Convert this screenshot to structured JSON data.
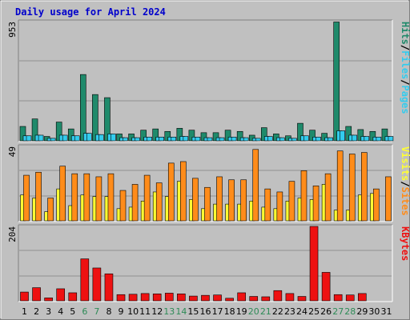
{
  "title": "Daily usage for April 2024",
  "colors": {
    "background": "#C0C0C0",
    "title": "#0000CC",
    "hits": "#1F8A6B",
    "files": "#33CCEE",
    "pages": "#33CCEE",
    "visits": "#FFFF33",
    "sites": "#FF8C1A",
    "kbytes": "#EE1111",
    "weekend_label": "#2E8B57"
  },
  "chart_data": [
    {
      "type": "bar",
      "title": "",
      "y_max_label": "953",
      "right_label_parts": [
        "Pages",
        "Files",
        "Hits"
      ],
      "categories": [
        "1",
        "2",
        "3",
        "4",
        "5",
        "6",
        "7",
        "8",
        "9",
        "10",
        "11",
        "12",
        "13",
        "14",
        "15",
        "16",
        "17",
        "18",
        "19",
        "20",
        "21",
        "22",
        "23",
        "24",
        "25",
        "26",
        "27",
        "28",
        "29",
        "30",
        "31"
      ],
      "weekend_days": [
        "6",
        "7",
        "13",
        "14",
        "20",
        "21",
        "27",
        "28"
      ],
      "ylim": [
        0,
        953
      ],
      "series": [
        {
          "name": "Hits",
          "values": [
            115,
            175,
            35,
            150,
            95,
            530,
            370,
            345,
            55,
            55,
            85,
            95,
            75,
            100,
            85,
            65,
            65,
            85,
            75,
            45,
            105,
            55,
            40,
            140,
            85,
            60,
            950,
            115,
            90,
            75,
            95
          ]
        },
        {
          "name": "Files",
          "values": [
            40,
            45,
            20,
            45,
            40,
            60,
            50,
            55,
            25,
            25,
            30,
            30,
            30,
            35,
            30,
            25,
            25,
            30,
            25,
            20,
            35,
            25,
            20,
            40,
            30,
            25,
            80,
            45,
            35,
            30,
            35
          ]
        },
        {
          "name": "Pages",
          "values": [
            40,
            45,
            20,
            45,
            40,
            60,
            50,
            55,
            25,
            25,
            30,
            30,
            30,
            35,
            30,
            25,
            25,
            30,
            25,
            20,
            35,
            25,
            20,
            40,
            30,
            25,
            80,
            45,
            35,
            30,
            35
          ]
        }
      ]
    },
    {
      "type": "bar",
      "title": "",
      "y_max_label": "49",
      "right_label_parts": [
        "Sites",
        "Visits"
      ],
      "categories": [
        "1",
        "2",
        "3",
        "4",
        "5",
        "6",
        "7",
        "8",
        "9",
        "10",
        "11",
        "12",
        "13",
        "14",
        "15",
        "16",
        "17",
        "18",
        "19",
        "20",
        "21",
        "22",
        "23",
        "24",
        "25",
        "26",
        "27",
        "28",
        "29",
        "30",
        "31"
      ],
      "ylim": [
        0,
        49
      ],
      "series": [
        {
          "name": "Visits",
          "values": [
            17,
            15,
            6,
            21,
            10,
            17,
            16,
            16,
            8,
            9,
            13,
            19,
            16,
            26,
            14,
            8,
            11,
            11,
            11,
            13,
            9,
            8,
            13,
            15,
            14,
            24,
            7,
            7,
            17,
            18,
            0
          ]
        },
        {
          "name": "Sites",
          "values": [
            30,
            32,
            15,
            36,
            31,
            31,
            29,
            31,
            20,
            24,
            30,
            25,
            38,
            39,
            28,
            22,
            29,
            27,
            27,
            47,
            21,
            19,
            26,
            33,
            23,
            31,
            46,
            44,
            45,
            21,
            29
          ]
        }
      ]
    },
    {
      "type": "bar",
      "title": "",
      "y_max_label": "204",
      "right_label_parts": [
        "KBytes"
      ],
      "categories": [
        "1",
        "2",
        "3",
        "4",
        "5",
        "6",
        "7",
        "8",
        "9",
        "10",
        "11",
        "12",
        "13",
        "14",
        "15",
        "16",
        "17",
        "18",
        "19",
        "20",
        "21",
        "22",
        "23",
        "24",
        "25",
        "26",
        "27",
        "28",
        "29",
        "30",
        "31"
      ],
      "ylim": [
        0,
        204
      ],
      "series": [
        {
          "name": "KBytes",
          "values": [
            24,
            36,
            8,
            33,
            22,
            115,
            90,
            74,
            17,
            18,
            20,
            19,
            21,
            19,
            13,
            15,
            16,
            7,
            22,
            12,
            11,
            28,
            20,
            12,
            204,
            78,
            17,
            16,
            20,
            0,
            0
          ]
        }
      ]
    }
  ]
}
